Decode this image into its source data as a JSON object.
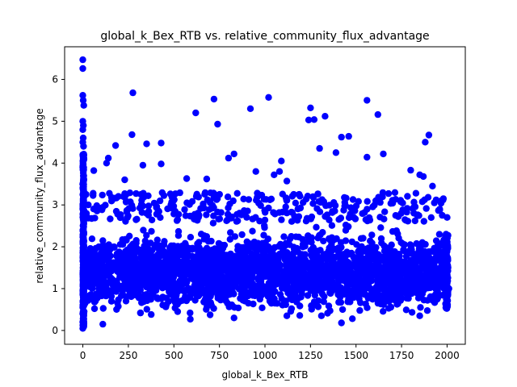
{
  "chart_data": {
    "type": "scatter",
    "title": "global_k_Bex_RTB vs. relative_community_flux_advantage",
    "xlabel": "global_k_Bex_RTB",
    "ylabel": "relative_community_flux_advantage",
    "xlim": [
      -100,
      2100
    ],
    "ylim": [
      -0.33,
      6.78
    ],
    "xticks": [
      0,
      250,
      500,
      750,
      1000,
      1250,
      1500,
      1750,
      2000
    ],
    "yticks": [
      0,
      1,
      2,
      3,
      4,
      5,
      6
    ],
    "marker_color": "#0000ff",
    "grid": false,
    "legend": "none",
    "points": [
      [
        0,
        6.47
      ],
      [
        0,
        6.26
      ],
      [
        0,
        5.62
      ],
      [
        2,
        5.5
      ],
      [
        5,
        5.38
      ],
      [
        0,
        5.0
      ],
      [
        3,
        4.9
      ],
      [
        0,
        4.8
      ],
      [
        2,
        4.6
      ],
      [
        0,
        4.5
      ],
      [
        4,
        4.4
      ],
      [
        0,
        4.2
      ],
      [
        6,
        4.1
      ],
      [
        0,
        3.9
      ],
      [
        3,
        3.7
      ],
      [
        0,
        3.5
      ],
      [
        0,
        0.05
      ],
      [
        2,
        0.12
      ],
      [
        0,
        0.2
      ],
      [
        5,
        0.28
      ],
      [
        0,
        0.4
      ],
      [
        3,
        0.35
      ],
      [
        7,
        0.45
      ],
      [
        0,
        0.55
      ],
      [
        275,
        5.68
      ],
      [
        270,
        4.68
      ],
      [
        620,
        5.2
      ],
      [
        720,
        5.53
      ],
      [
        740,
        4.93
      ],
      [
        1020,
        5.57
      ],
      [
        920,
        5.3
      ],
      [
        1250,
        5.32
      ],
      [
        1240,
        5.03
      ],
      [
        1270,
        5.04
      ],
      [
        1330,
        5.12
      ],
      [
        1560,
        5.5
      ],
      [
        1620,
        5.16
      ],
      [
        1300,
        4.35
      ],
      [
        1390,
        4.25
      ],
      [
        1420,
        4.62
      ],
      [
        1460,
        4.64
      ],
      [
        1560,
        4.14
      ],
      [
        1650,
        4.22
      ],
      [
        1880,
        4.5
      ],
      [
        1900,
        4.67
      ],
      [
        1050,
        3.72
      ],
      [
        1080,
        3.8
      ],
      [
        1090,
        4.05
      ],
      [
        830,
        4.22
      ],
      [
        800,
        4.12
      ],
      [
        180,
        4.42
      ],
      [
        350,
        4.46
      ],
      [
        430,
        4.48
      ],
      [
        140,
        4.12
      ],
      [
        130,
        4.0
      ],
      [
        60,
        3.82
      ],
      [
        430,
        3.98
      ],
      [
        330,
        3.95
      ],
      [
        950,
        3.8
      ],
      [
        1120,
        3.57
      ],
      [
        1800,
        3.83
      ],
      [
        1850,
        3.72
      ],
      [
        1870,
        3.68
      ],
      [
        1920,
        3.45
      ],
      [
        570,
        3.63
      ],
      [
        680,
        3.62
      ],
      [
        230,
        3.6
      ],
      [
        110,
        0.15
      ],
      [
        1420,
        0.18
      ],
      [
        1480,
        0.28
      ],
      [
        830,
        0.3
      ],
      [
        590,
        0.27
      ],
      [
        1850,
        0.35
      ],
      [
        1120,
        0.35
      ],
      [
        1310,
        0.35
      ],
      [
        2000,
        0.6
      ],
      [
        2010,
        1.0
      ],
      [
        2005,
        1.5
      ],
      [
        2000,
        2.7
      ],
      [
        1980,
        3.15
      ],
      [
        1930,
        3.05
      ],
      [
        1960,
        2.9
      ],
      [
        1940,
        3.12
      ]
    ]
  }
}
